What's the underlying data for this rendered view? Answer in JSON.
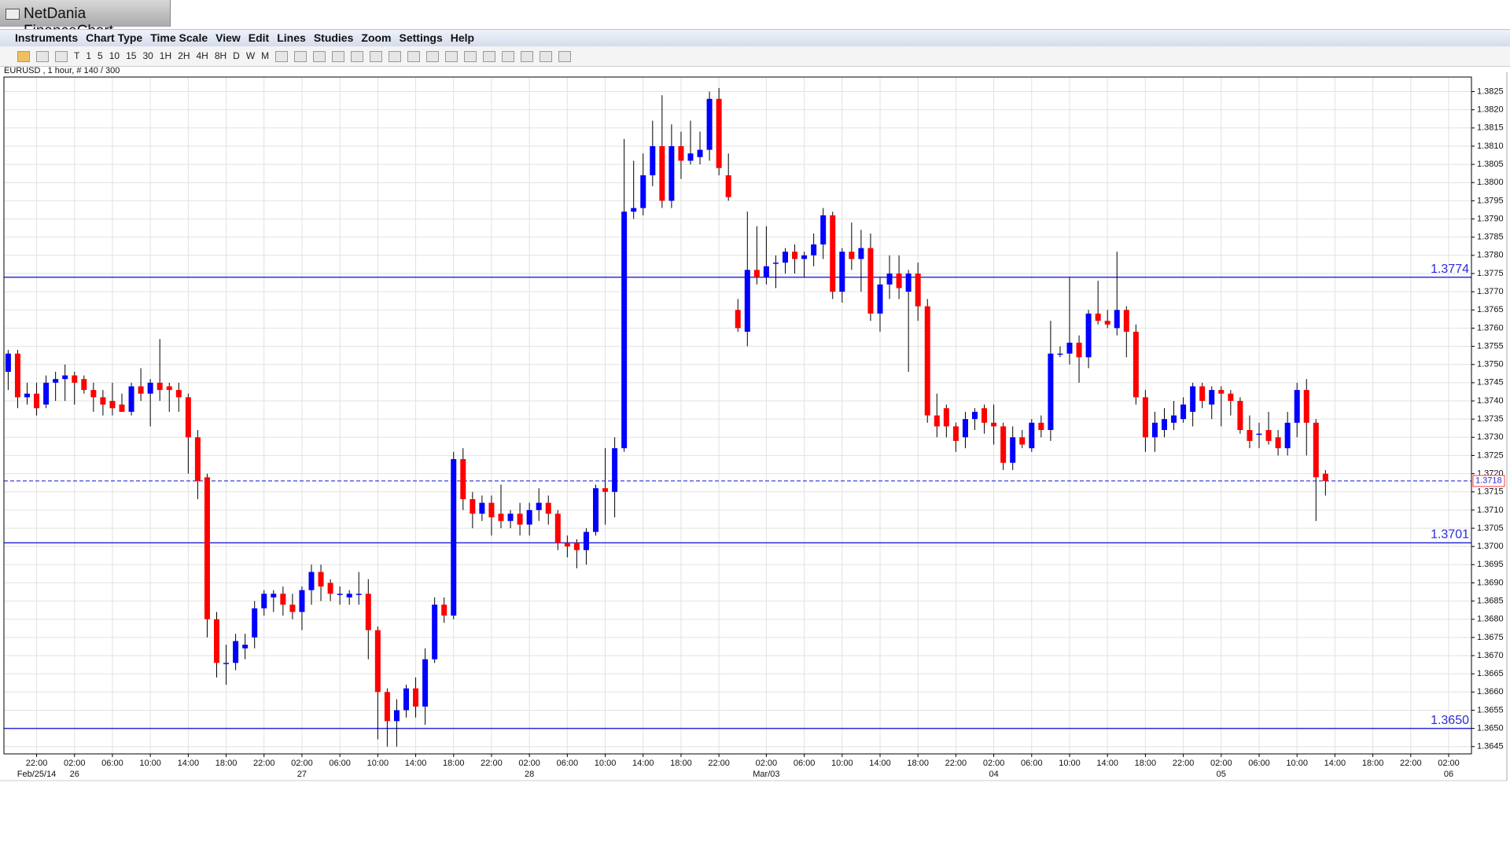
{
  "window": {
    "title": "NetDania FinanceChart"
  },
  "menu": [
    "Instruments",
    "Chart Type",
    "Time Scale",
    "View",
    "Edit",
    "Lines",
    "Studies",
    "Zoom",
    "Settings",
    "Help"
  ],
  "toolbar": [
    "T",
    "1",
    "5",
    "10",
    "15",
    "30",
    "1H",
    "2H",
    "4H",
    "8H",
    "D",
    "W",
    "M"
  ],
  "info": "EURUSD , 1 hour, # 140 / 300",
  "chart_data": {
    "type": "candlestick",
    "up_color": "#0000ff",
    "down_color": "#ff0000",
    "grid": true,
    "open": [
      1.3748,
      1.3753,
      1.3741,
      1.3742,
      1.3739,
      1.3745,
      1.3746,
      1.3747,
      1.3746,
      1.3743,
      1.3741,
      1.374,
      1.3739,
      1.3737,
      1.3744,
      1.3742,
      1.3745,
      1.3744,
      1.3743,
      1.3741,
      1.373,
      1.3719,
      1.368,
      1.3668,
      1.3668,
      1.3672,
      1.3675,
      1.3683,
      1.3686,
      1.3687,
      1.3684,
      1.3682,
      1.3688,
      1.3693,
      1.369,
      1.3687,
      1.3686,
      1.3687,
      1.3687,
      1.3677,
      1.366,
      1.3652,
      1.3655,
      1.3661,
      1.3656,
      1.3669,
      1.3684,
      1.3681,
      1.3724,
      1.3713,
      1.3709,
      1.3712,
      1.3709,
      1.3707,
      1.3709,
      1.3706,
      1.371,
      1.3712,
      1.3709,
      1.3701,
      1.3701,
      1.3699,
      1.3704,
      1.3716,
      1.3715,
      1.3727,
      1.3792,
      1.3793,
      1.3802,
      1.381,
      1.3795,
      1.381,
      1.3806,
      1.3807,
      1.3809,
      1.3823,
      1.3802,
      1.3765,
      1.3759,
      1.3776,
      1.3774,
      1.3778,
      1.3778,
      1.3781,
      1.3779,
      1.378,
      1.3783,
      1.3791,
      1.377,
      1.3781,
      1.3779,
      1.3782,
      1.3764,
      1.3772,
      1.3775,
      1.377,
      1.3775,
      1.3766,
      1.3736,
      1.3738,
      1.3733,
      1.373,
      1.3735,
      1.3738,
      1.3734,
      1.3733,
      1.3723,
      1.373,
      1.3727,
      1.3734,
      1.3732,
      1.3753,
      1.3753,
      1.3756,
      1.3752,
      1.3764,
      1.3762,
      1.376,
      1.3765,
      1.3759,
      1.3741,
      1.373,
      1.3732,
      1.3734,
      1.3735,
      1.3737,
      1.3744,
      1.3739,
      1.3743,
      1.3742,
      1.374,
      1.3732,
      1.3731,
      1.3732,
      1.373,
      1.3727,
      1.3734,
      1.3743,
      1.3734,
      1.372
    ],
    "high": [
      1.3754,
      1.3754,
      1.3745,
      1.3745,
      1.3747,
      1.3748,
      1.375,
      1.3748,
      1.3747,
      1.3745,
      1.3743,
      1.3745,
      1.3742,
      1.3745,
      1.3749,
      1.3746,
      1.3757,
      1.3745,
      1.3745,
      1.3742,
      1.3732,
      1.372,
      1.3682,
      1.3673,
      1.3676,
      1.3676,
      1.3685,
      1.3688,
      1.3688,
      1.3689,
      1.3687,
      1.3689,
      1.3695,
      1.3695,
      1.3691,
      1.3689,
      1.3688,
      1.3693,
      1.3691,
      1.3678,
      1.3661,
      1.3658,
      1.3662,
      1.3664,
      1.3672,
      1.3686,
      1.3686,
      1.3726,
      1.3727,
      1.3715,
      1.3714,
      1.3714,
      1.3717,
      1.371,
      1.3712,
      1.3712,
      1.3716,
      1.3714,
      1.371,
      1.3703,
      1.3702,
      1.3705,
      1.3717,
      1.3727,
      1.373,
      1.3812,
      1.3806,
      1.3808,
      1.3817,
      1.3824,
      1.3816,
      1.3814,
      1.3817,
      1.3814,
      1.3825,
      1.3826,
      1.3808,
      1.3768,
      1.3792,
      1.3788,
      1.3788,
      1.378,
      1.3782,
      1.3783,
      1.3781,
      1.3786,
      1.3793,
      1.3792,
      1.3782,
      1.3789,
      1.3787,
      1.3786,
      1.3774,
      1.378,
      1.378,
      1.3776,
      1.3778,
      1.3768,
      1.3742,
      1.3739,
      1.3734,
      1.3737,
      1.3738,
      1.3739,
      1.3739,
      1.3734,
      1.3733,
      1.3732,
      1.3735,
      1.3736,
      1.3762,
      1.3755,
      1.3774,
      1.3758,
      1.3765,
      1.3773,
      1.3765,
      1.3781,
      1.3766,
      1.3761,
      1.3743,
      1.3737,
      1.3738,
      1.374,
      1.3741,
      1.3745,
      1.3745,
      1.3744,
      1.3744,
      1.3743,
      1.3741,
      1.3736,
      1.3734,
      1.3737,
      1.3732,
      1.3737,
      1.3745,
      1.3746,
      1.3735,
      1.3721
    ],
    "low": [
      1.3743,
      1.3738,
      1.3739,
      1.3736,
      1.3738,
      1.374,
      1.374,
      1.3739,
      1.3742,
      1.3737,
      1.3736,
      1.3736,
      1.3737,
      1.3736,
      1.374,
      1.3733,
      1.374,
      1.3737,
      1.3737,
      1.372,
      1.3713,
      1.3675,
      1.3664,
      1.3662,
      1.3666,
      1.3669,
      1.3672,
      1.3681,
      1.3682,
      1.3681,
      1.368,
      1.3677,
      1.3684,
      1.3685,
      1.3685,
      1.3684,
      1.3684,
      1.3684,
      1.3669,
      1.3647,
      1.3645,
      1.3645,
      1.3653,
      1.3653,
      1.3651,
      1.3668,
      1.3679,
      1.368,
      1.371,
      1.3705,
      1.3707,
      1.3703,
      1.3705,
      1.3705,
      1.3703,
      1.3703,
      1.3707,
      1.3706,
      1.3699,
      1.3697,
      1.3694,
      1.3695,
      1.3703,
      1.3706,
      1.3708,
      1.3726,
      1.379,
      1.3791,
      1.3799,
      1.3793,
      1.3793,
      1.3801,
      1.3805,
      1.3805,
      1.3806,
      1.3802,
      1.3795,
      1.3759,
      1.3755,
      1.3772,
      1.3772,
      1.3771,
      1.3775,
      1.3775,
      1.3774,
      1.3777,
      1.3779,
      1.3768,
      1.3767,
      1.3776,
      1.377,
      1.3762,
      1.3759,
      1.3768,
      1.3768,
      1.3748,
      1.3762,
      1.3734,
      1.373,
      1.373,
      1.3726,
      1.3727,
      1.3732,
      1.3731,
      1.3728,
      1.3721,
      1.3721,
      1.3727,
      1.3726,
      1.373,
      1.3729,
      1.3752,
      1.375,
      1.3745,
      1.3749,
      1.3761,
      1.376,
      1.3758,
      1.3752,
      1.3739,
      1.3726,
      1.3726,
      1.373,
      1.3732,
      1.3734,
      1.3733,
      1.3738,
      1.3735,
      1.3733,
      1.3736,
      1.3731,
      1.3727,
      1.3727,
      1.3728,
      1.3725,
      1.3725,
      1.373,
      1.3725,
      1.3707,
      1.3714
    ],
    "close": [
      1.3753,
      1.3741,
      1.3742,
      1.3738,
      1.3745,
      1.3746,
      1.3747,
      1.3745,
      1.3743,
      1.3741,
      1.3739,
      1.3738,
      1.3737,
      1.3744,
      1.3742,
      1.3745,
      1.3743,
      1.3743,
      1.3741,
      1.373,
      1.3718,
      1.368,
      1.3668,
      1.3668,
      1.3674,
      1.3673,
      1.3683,
      1.3687,
      1.3687,
      1.3684,
      1.3682,
      1.3688,
      1.3693,
      1.3689,
      1.3687,
      1.3687,
      1.3687,
      1.3687,
      1.3677,
      1.366,
      1.3652,
      1.3655,
      1.3661,
      1.3656,
      1.3669,
      1.3684,
      1.3681,
      1.3724,
      1.3713,
      1.3709,
      1.3712,
      1.3708,
      1.3707,
      1.3709,
      1.3706,
      1.371,
      1.3712,
      1.3709,
      1.3701,
      1.37,
      1.3699,
      1.3704,
      1.3716,
      1.3715,
      1.3727,
      1.3792,
      1.3793,
      1.3802,
      1.381,
      1.3795,
      1.381,
      1.3806,
      1.3808,
      1.3809,
      1.3823,
      1.3804,
      1.3796,
      1.376,
      1.3776,
      1.3774,
      1.3777,
      1.3778,
      1.3781,
      1.3779,
      1.378,
      1.3783,
      1.3791,
      1.377,
      1.3781,
      1.3779,
      1.3782,
      1.3764,
      1.3772,
      1.3775,
      1.3771,
      1.3775,
      1.3766,
      1.3736,
      1.3733,
      1.3733,
      1.3729,
      1.3735,
      1.3737,
      1.3734,
      1.3733,
      1.3723,
      1.373,
      1.3728,
      1.3734,
      1.3732,
      1.3753,
      1.3753,
      1.3756,
      1.3752,
      1.3764,
      1.3762,
      1.3761,
      1.3765,
      1.3759,
      1.3741,
      1.373,
      1.3734,
      1.3735,
      1.3736,
      1.3739,
      1.3744,
      1.374,
      1.3743,
      1.3742,
      1.374,
      1.3732,
      1.3729,
      1.3731,
      1.3729,
      1.3727,
      1.3734,
      1.3743,
      1.3734,
      1.3719,
      1.3718
    ],
    "ylim": [
      1.3643,
      1.3829
    ],
    "yticks": [
      1.3645,
      {
        "value": 1.365,
        "label": "1.3650"
      },
      1.3655,
      {
        "value": 1.366,
        "label": "1.3660"
      },
      1.3665,
      {
        "value": 1.367,
        "label": "1.3670"
      },
      1.3675,
      {
        "value": 1.368,
        "label": "1.3680"
      },
      1.3685,
      {
        "value": 1.369,
        "label": "1.3690"
      },
      1.3695,
      {
        "value": 1.37,
        "label": "1.3700"
      },
      1.3705,
      {
        "value": 1.371,
        "label": "1.3710"
      },
      1.3715,
      {
        "value": 1.372,
        "label": "1.3720"
      },
      1.3725,
      {
        "value": 1.373,
        "label": "1.3730"
      },
      1.3735,
      {
        "value": 1.374,
        "label": "1.3740"
      },
      1.3745,
      {
        "value": 1.375,
        "label": "1.3750"
      },
      1.3755,
      {
        "value": 1.376,
        "label": "1.3760"
      },
      1.3765,
      {
        "value": 1.377,
        "label": "1.3770"
      },
      1.3775,
      {
        "value": 1.378,
        "label": "1.3780"
      },
      1.3785,
      {
        "value": 1.379,
        "label": "1.3790"
      },
      1.3795,
      {
        "value": 1.38,
        "label": "1.3800"
      },
      1.3805,
      {
        "value": 1.381,
        "label": "1.3810"
      },
      1.3815,
      {
        "value": 1.382,
        "label": "1.3820"
      },
      1.3825
    ],
    "xticks": [
      {
        "value": 3,
        "label": "22:00"
      },
      {
        "value": 7,
        "label": "02:00"
      },
      {
        "value": 11,
        "label": "06:00"
      },
      {
        "value": 15,
        "label": "10:00"
      },
      {
        "value": 19,
        "label": "14:00"
      },
      {
        "value": 23,
        "label": "18:00"
      },
      {
        "value": 27,
        "label": "22:00"
      },
      {
        "value": 31,
        "label": "02:00"
      },
      {
        "value": 35,
        "label": "06:00"
      },
      {
        "value": 39,
        "label": "10:00"
      },
      {
        "value": 43,
        "label": "14:00"
      },
      {
        "value": 47,
        "label": "18:00"
      },
      {
        "value": 51,
        "label": "22:00"
      },
      {
        "value": 55,
        "label": "02:00"
      },
      {
        "value": 59,
        "label": "06:00"
      },
      {
        "value": 63,
        "label": "10:00"
      },
      {
        "value": 67,
        "label": "14:00"
      },
      {
        "value": 71,
        "label": "18:00"
      },
      {
        "value": 75,
        "label": "22:00"
      },
      {
        "value": 80,
        "label": "02:00"
      },
      {
        "value": 84,
        "label": "06:00"
      },
      {
        "value": 88,
        "label": "10:00"
      },
      {
        "value": 92,
        "label": "14:00"
      },
      {
        "value": 96,
        "label": "18:00"
      },
      {
        "value": 100,
        "label": "22:00"
      },
      {
        "value": 104,
        "label": "02:00"
      },
      {
        "value": 108,
        "label": "06:00"
      },
      {
        "value": 112,
        "label": "10:00"
      },
      {
        "value": 116,
        "label": "14:00"
      },
      {
        "value": 120,
        "label": "18:00"
      },
      {
        "value": 124,
        "label": "22:00"
      },
      {
        "value": 128,
        "label": "02:00"
      },
      {
        "value": 132,
        "label": "06:00"
      },
      {
        "value": 136,
        "label": "10:00"
      },
      {
        "value": 140,
        "label": "14:00"
      },
      {
        "value": 144,
        "label": "18:00"
      },
      {
        "value": 148,
        "label": "22:00"
      },
      {
        "value": 152,
        "label": "02:00"
      }
    ],
    "date_ticks": [
      {
        "value": 3,
        "label": "Feb/25/14"
      },
      {
        "value": 7,
        "label": "26"
      },
      {
        "value": 31,
        "label": "27"
      },
      {
        "value": 55,
        "label": "28"
      },
      {
        "value": 80,
        "label": "Mar/03"
      },
      {
        "value": 104,
        "label": "04"
      },
      {
        "value": 128,
        "label": "05"
      },
      {
        "value": 152,
        "label": "06"
      }
    ],
    "hlines": [
      1.3774,
      1.3701,
      {
        "value": 1.365,
        "label": "1.3650"
      }
    ],
    "last_price": 1.3718
  }
}
